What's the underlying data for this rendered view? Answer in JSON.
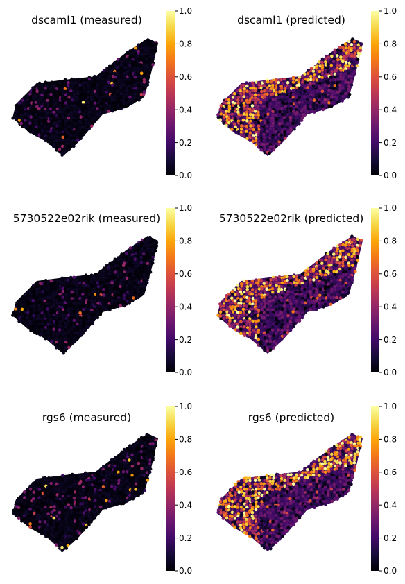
{
  "chart_data": [
    {
      "type": "scatter",
      "title": "dscaml1 (measured)",
      "mode": "measured",
      "value_range": [
        0,
        1
      ],
      "colormap": "inferno",
      "axes_visible": false,
      "colorbar": {
        "ticks": [
          "0.0",
          "0.2",
          "0.4",
          "0.6",
          "0.8",
          "1.0"
        ],
        "range": [
          0,
          1
        ]
      }
    },
    {
      "type": "scatter",
      "title": "dscaml1 (predicted)",
      "mode": "predicted",
      "value_range": [
        0,
        1
      ],
      "colormap": "inferno",
      "axes_visible": false,
      "colorbar": {
        "ticks": [
          "0.0",
          "0.2",
          "0.4",
          "0.6",
          "0.8",
          "1.0"
        ],
        "range": [
          0,
          1
        ]
      }
    },
    {
      "type": "scatter",
      "title": "5730522e02rik (measured)",
      "mode": "measured",
      "value_range": [
        0,
        1
      ],
      "colormap": "inferno",
      "axes_visible": false,
      "colorbar": {
        "ticks": [
          "0.0",
          "0.2",
          "0.4",
          "0.6",
          "0.8",
          "1.0"
        ],
        "range": [
          0,
          1
        ]
      }
    },
    {
      "type": "scatter",
      "title": "5730522e02rik (predicted)",
      "mode": "predicted",
      "value_range": [
        0,
        1
      ],
      "colormap": "inferno",
      "axes_visible": false,
      "colorbar": {
        "ticks": [
          "0.0",
          "0.2",
          "0.4",
          "0.6",
          "0.8",
          "1.0"
        ],
        "range": [
          0,
          1
        ]
      }
    },
    {
      "type": "scatter",
      "title": "rgs6 (measured)",
      "mode": "measured",
      "value_range": [
        0,
        1
      ],
      "colormap": "inferno",
      "axes_visible": false,
      "colorbar": {
        "ticks": [
          "0.0",
          "0.2",
          "0.4",
          "0.6",
          "0.8",
          "1.0"
        ],
        "range": [
          0,
          1
        ]
      }
    },
    {
      "type": "scatter",
      "title": "rgs6 (predicted)",
      "mode": "predicted",
      "value_range": [
        0,
        1
      ],
      "colormap": "inferno",
      "axes_visible": false,
      "colorbar": {
        "ticks": [
          "0.0",
          "0.2",
          "0.4",
          "0.6",
          "0.8",
          "1.0"
        ],
        "range": [
          0,
          1
        ]
      }
    }
  ]
}
